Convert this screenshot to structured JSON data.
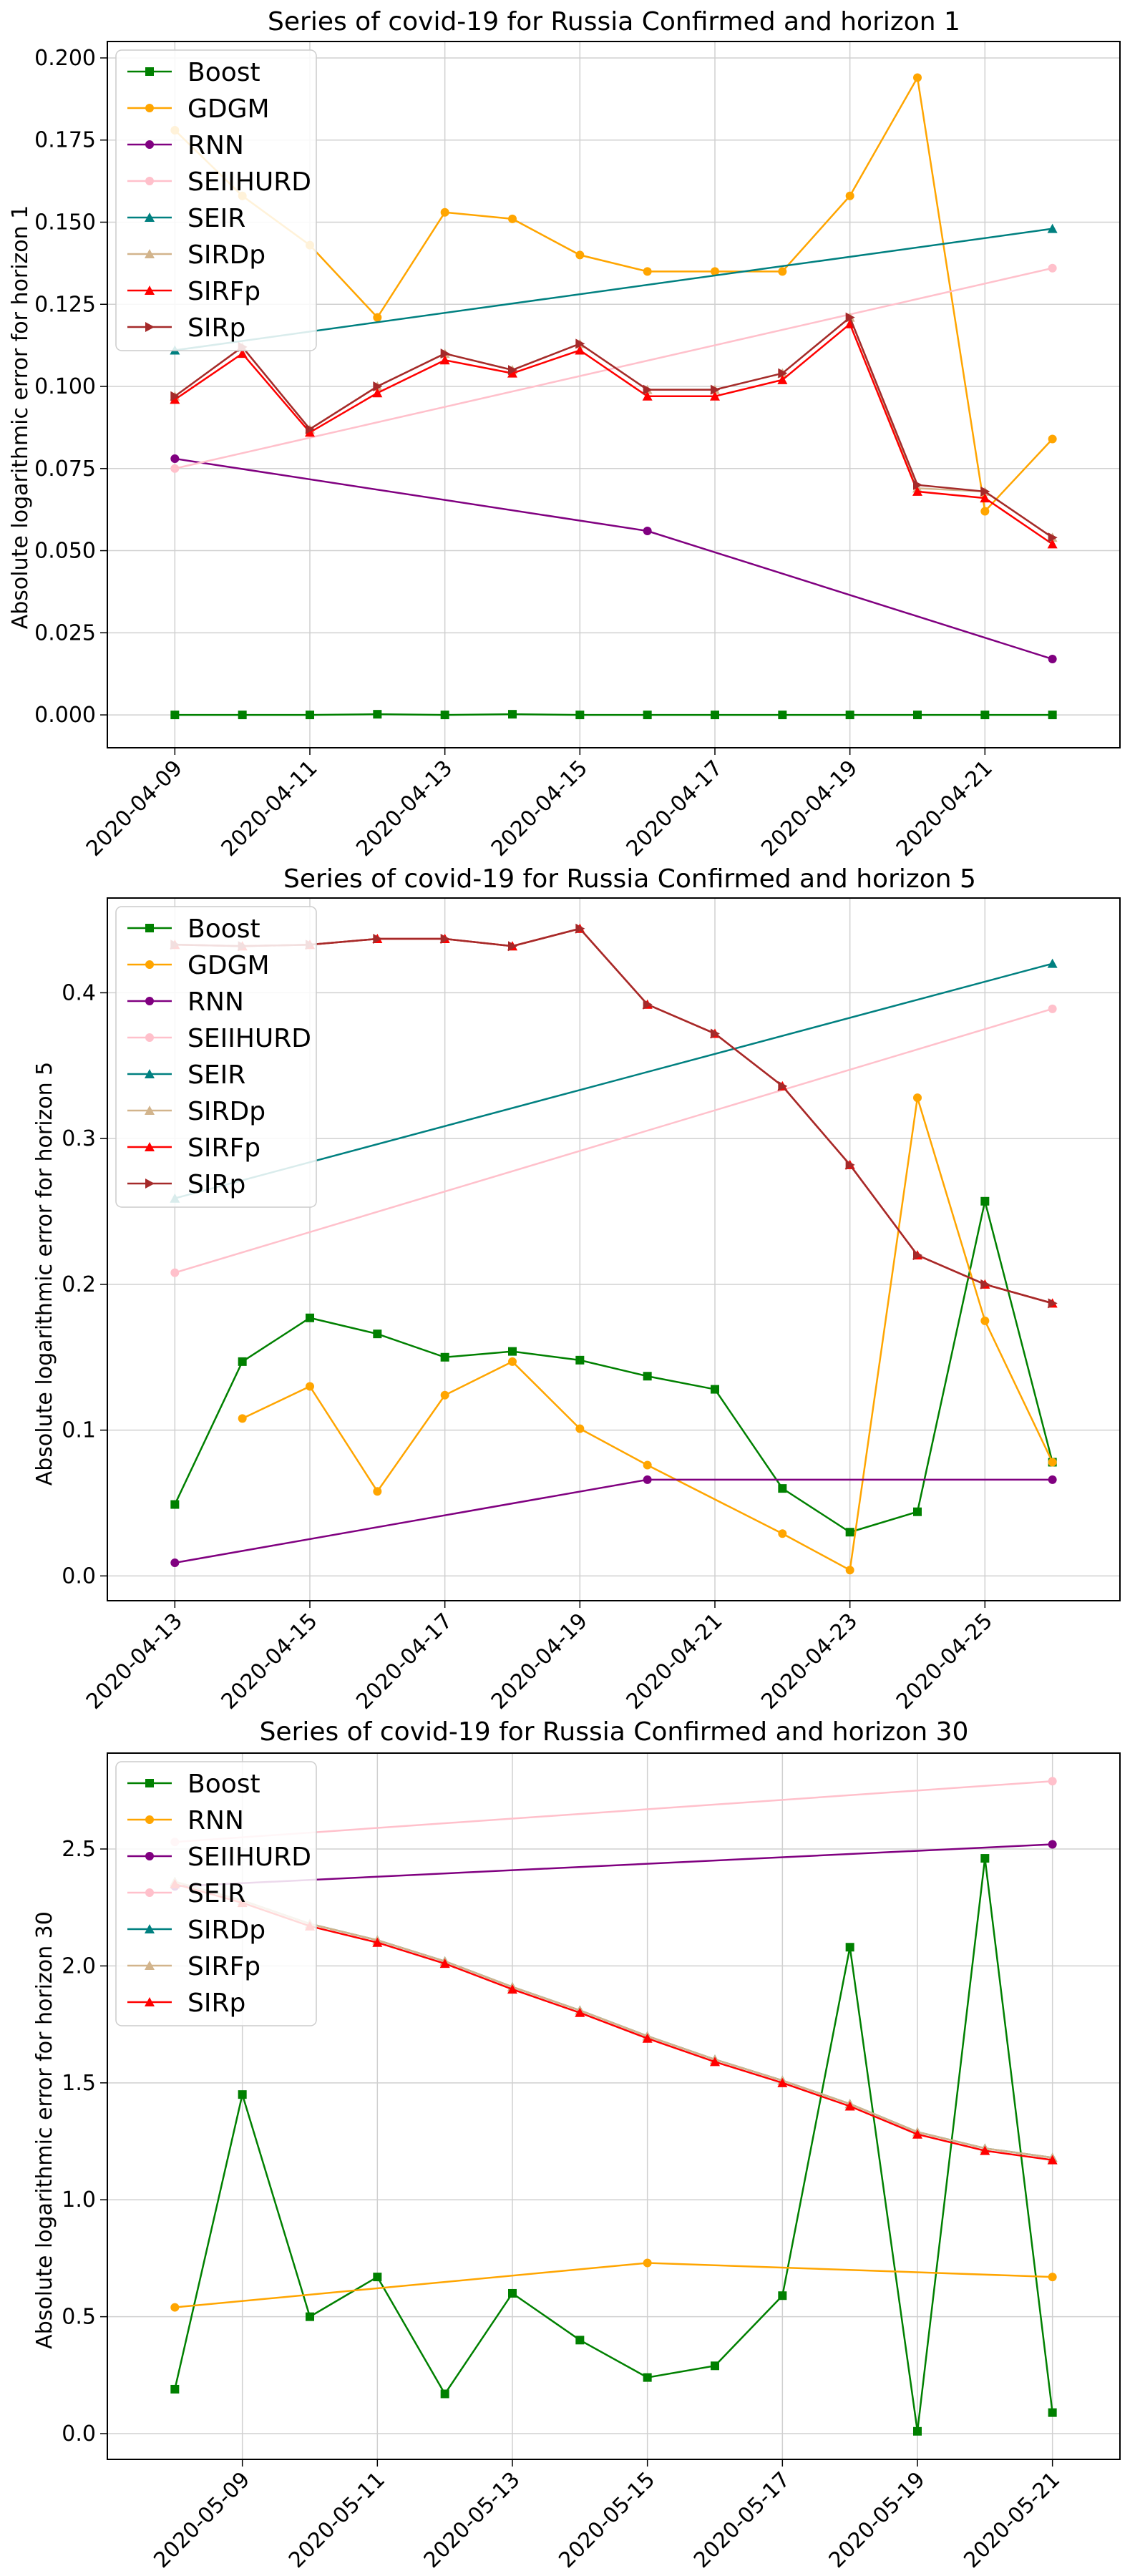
{
  "chart_data": [
    {
      "type": "line",
      "title": "Series of covid-19 for Russia Confirmed and horizon 1",
      "xlabel": "",
      "ylabel": "Absolute logarithmic error for horizon 1",
      "x_start": "2020-04-09",
      "x_range": [
        "2020-04-08",
        "2020-04-23"
      ],
      "x_tick_labels": [
        "2020-04-09",
        "2020-04-11",
        "2020-04-13",
        "2020-04-15",
        "2020-04-17",
        "2020-04-19",
        "2020-04-21"
      ],
      "ylim": [
        -0.01,
        0.205
      ],
      "y_tick_labels": [
        "0.000",
        "0.025",
        "0.050",
        "0.075",
        "0.100",
        "0.125",
        "0.150",
        "0.175",
        "0.200"
      ],
      "grid": true,
      "legend_position": "top-left",
      "series": [
        {
          "name": "Boost",
          "color": "#008000",
          "marker": "square",
          "points": [
            [
              0,
              0.0
            ],
            [
              1,
              0.0
            ],
            [
              2,
              0.0
            ],
            [
              3,
              0.0002
            ],
            [
              4,
              0.0
            ],
            [
              5,
              0.0002
            ],
            [
              6,
              0.0
            ],
            [
              7,
              0.0
            ],
            [
              8,
              0.0
            ],
            [
              9,
              0.0
            ],
            [
              10,
              0.0
            ],
            [
              11,
              0.0
            ],
            [
              12,
              0.0
            ],
            [
              13,
              0.0
            ]
          ]
        },
        {
          "name": "GDGM",
          "color": "#ffa500",
          "marker": "circle",
          "points": [
            [
              0,
              0.178
            ],
            [
              1,
              0.158
            ],
            [
              2,
              0.143
            ],
            [
              3,
              0.121
            ],
            [
              4,
              0.153
            ],
            [
              5,
              0.151
            ],
            [
              6,
              0.14
            ],
            [
              7,
              0.135
            ],
            [
              8,
              0.135
            ],
            [
              9,
              0.135
            ],
            [
              10,
              0.158
            ],
            [
              11,
              0.194
            ],
            [
              12,
              0.062
            ],
            [
              13,
              0.084
            ]
          ]
        },
        {
          "name": "RNN",
          "color": "#800080",
          "marker": "circle",
          "points": [
            [
              0,
              0.078
            ],
            [
              7,
              0.056
            ],
            [
              13,
              0.017
            ]
          ]
        },
        {
          "name": "SEIIHURD",
          "color": "#ffc0cb",
          "marker": "circle",
          "points": [
            [
              0,
              0.075
            ],
            [
              13,
              0.136
            ]
          ]
        },
        {
          "name": "SEIR",
          "color": "#008080",
          "marker": "triangle-up",
          "points": [
            [
              0,
              0.111
            ],
            [
              13,
              0.148
            ]
          ]
        },
        {
          "name": "SIRDp",
          "color": "#d2b48c",
          "marker": "triangle-up",
          "points": [
            [
              0,
              0.097
            ],
            [
              1,
              0.112
            ],
            [
              2,
              0.087
            ],
            [
              3,
              0.1
            ],
            [
              4,
              0.11
            ],
            [
              5,
              0.105
            ],
            [
              6,
              0.113
            ],
            [
              7,
              0.099
            ],
            [
              8,
              0.099
            ],
            [
              9,
              0.104
            ],
            [
              10,
              0.121
            ],
            [
              11,
              0.069
            ],
            [
              12,
              0.068
            ],
            [
              13,
              0.054
            ]
          ]
        },
        {
          "name": "SIRFp",
          "color": "#ff0000",
          "marker": "triangle-up",
          "points": [
            [
              0,
              0.096
            ],
            [
              1,
              0.11
            ],
            [
              2,
              0.086
            ],
            [
              3,
              0.098
            ],
            [
              4,
              0.108
            ],
            [
              5,
              0.104
            ],
            [
              6,
              0.111
            ],
            [
              7,
              0.097
            ],
            [
              8,
              0.097
            ],
            [
              9,
              0.102
            ],
            [
              10,
              0.119
            ],
            [
              11,
              0.068
            ],
            [
              12,
              0.066
            ],
            [
              13,
              0.052
            ]
          ]
        },
        {
          "name": "SIRp",
          "color": "#a52a2a",
          "marker": "triangle-right",
          "points": [
            [
              0,
              0.097
            ],
            [
              1,
              0.112
            ],
            [
              2,
              0.087
            ],
            [
              3,
              0.1
            ],
            [
              4,
              0.11
            ],
            [
              5,
              0.105
            ],
            [
              6,
              0.113
            ],
            [
              7,
              0.099
            ],
            [
              8,
              0.099
            ],
            [
              9,
              0.104
            ],
            [
              10,
              0.121
            ],
            [
              11,
              0.07
            ],
            [
              12,
              0.068
            ],
            [
              13,
              0.054
            ]
          ]
        }
      ]
    },
    {
      "type": "line",
      "title": "Series of covid-19 for Russia Confirmed and horizon 5",
      "xlabel": "",
      "ylabel": "Absolute logarithmic error for horizon 5",
      "x_start": "2020-04-13",
      "x_range": [
        "2020-04-12",
        "2020-04-27"
      ],
      "x_tick_labels": [
        "2020-04-13",
        "2020-04-15",
        "2020-04-17",
        "2020-04-19",
        "2020-04-21",
        "2020-04-23",
        "2020-04-25"
      ],
      "ylim": [
        -0.017,
        0.465
      ],
      "y_tick_labels": [
        "0.0",
        "0.1",
        "0.2",
        "0.3",
        "0.4"
      ],
      "grid": true,
      "legend_position": "top-left",
      "series": [
        {
          "name": "Boost",
          "color": "#008000",
          "marker": "square",
          "points": [
            [
              0,
              0.049
            ],
            [
              1,
              0.147
            ],
            [
              2,
              0.177
            ],
            [
              3,
              0.166
            ],
            [
              4,
              0.15
            ],
            [
              5,
              0.154
            ],
            [
              6,
              0.148
            ],
            [
              7,
              0.137
            ],
            [
              8,
              0.128
            ],
            [
              9,
              0.06
            ],
            [
              10,
              0.03
            ],
            [
              11,
              0.044
            ],
            [
              12,
              0.257
            ],
            [
              13,
              0.078
            ]
          ]
        },
        {
          "name": "GDGM",
          "color": "#ffa500",
          "marker": "circle",
          "points": [
            [
              1,
              0.108
            ],
            [
              2,
              0.13
            ],
            [
              3,
              0.058
            ],
            [
              4,
              0.124
            ],
            [
              5,
              0.147
            ],
            [
              6,
              0.101
            ],
            [
              7,
              0.076
            ],
            [
              9,
              0.029
            ],
            [
              10,
              0.004
            ],
            [
              11,
              0.328
            ],
            [
              12,
              0.175
            ],
            [
              13,
              0.078
            ]
          ]
        },
        {
          "name": "RNN",
          "color": "#800080",
          "marker": "circle",
          "points": [
            [
              0,
              0.009
            ],
            [
              7,
              0.066
            ],
            [
              13,
              0.066
            ]
          ]
        },
        {
          "name": "SEIIHURD",
          "color": "#ffc0cb",
          "marker": "circle",
          "points": [
            [
              0,
              0.208
            ],
            [
              13,
              0.389
            ]
          ]
        },
        {
          "name": "SEIR",
          "color": "#008080",
          "marker": "triangle-up",
          "points": [
            [
              0,
              0.259
            ],
            [
              13,
              0.42
            ]
          ]
        },
        {
          "name": "SIRDp",
          "color": "#d2b48c",
          "marker": "triangle-up",
          "points": [
            [
              0,
              0.433
            ],
            [
              1,
              0.432
            ],
            [
              2,
              0.433
            ],
            [
              3,
              0.437
            ],
            [
              4,
              0.437
            ],
            [
              5,
              0.432
            ],
            [
              6,
              0.444
            ],
            [
              7,
              0.392
            ],
            [
              8,
              0.372
            ],
            [
              9,
              0.336
            ],
            [
              10,
              0.282
            ],
            [
              11,
              0.22
            ],
            [
              12,
              0.2
            ],
            [
              13,
              0.187
            ]
          ]
        },
        {
          "name": "SIRFp",
          "color": "#ff0000",
          "marker": "triangle-up",
          "points": [
            [
              0,
              0.433
            ],
            [
              1,
              0.432
            ],
            [
              2,
              0.433
            ],
            [
              3,
              0.437
            ],
            [
              4,
              0.437
            ],
            [
              5,
              0.432
            ],
            [
              6,
              0.444
            ],
            [
              7,
              0.392
            ],
            [
              8,
              0.372
            ],
            [
              9,
              0.336
            ],
            [
              10,
              0.282
            ],
            [
              11,
              0.22
            ],
            [
              12,
              0.2
            ],
            [
              13,
              0.187
            ]
          ]
        },
        {
          "name": "SIRp",
          "color": "#a52a2a",
          "marker": "triangle-right",
          "points": [
            [
              0,
              0.433
            ],
            [
              1,
              0.432
            ],
            [
              2,
              0.433
            ],
            [
              3,
              0.437
            ],
            [
              4,
              0.437
            ],
            [
              5,
              0.432
            ],
            [
              6,
              0.444
            ],
            [
              7,
              0.392
            ],
            [
              8,
              0.372
            ],
            [
              9,
              0.336
            ],
            [
              10,
              0.282
            ],
            [
              11,
              0.22
            ],
            [
              12,
              0.2
            ],
            [
              13,
              0.187
            ]
          ]
        }
      ]
    },
    {
      "type": "line",
      "title": "Series of covid-19 for Russia Confirmed and horizon 30",
      "xlabel": "",
      "ylabel": "Absolute logarithmic error for horizon 30",
      "x_start": "2020-05-08",
      "x_range": [
        "2020-05-07",
        "2020-05-22"
      ],
      "x_tick_labels": [
        "2020-05-09",
        "2020-05-11",
        "2020-05-13",
        "2020-05-15",
        "2020-05-17",
        "2020-05-19",
        "2020-05-21"
      ],
      "ylim": [
        -0.11,
        2.91
      ],
      "y_tick_labels": [
        "0.0",
        "0.5",
        "1.0",
        "1.5",
        "2.0",
        "2.5"
      ],
      "grid": true,
      "legend_position": "top-left",
      "series": [
        {
          "name": "Boost",
          "color": "#008000",
          "marker": "square",
          "points": [
            [
              0,
              0.19
            ],
            [
              1,
              1.45
            ],
            [
              2,
              0.5
            ],
            [
              3,
              0.67
            ],
            [
              4,
              0.17
            ],
            [
              5,
              0.6
            ],
            [
              6,
              0.4
            ],
            [
              7,
              0.24
            ],
            [
              8,
              0.29
            ],
            [
              9,
              0.59
            ],
            [
              10,
              2.08
            ],
            [
              11,
              0.01
            ],
            [
              12,
              2.46
            ],
            [
              13,
              0.09
            ]
          ]
        },
        {
          "name": "RNN",
          "color": "#ffa500",
          "marker": "circle",
          "points": [
            [
              0,
              0.54
            ],
            [
              7,
              0.73
            ],
            [
              13,
              0.67
            ]
          ]
        },
        {
          "name": "SEIIHURD",
          "color": "#800080",
          "marker": "circle",
          "points": [
            [
              0,
              2.34
            ],
            [
              13,
              2.52
            ]
          ]
        },
        {
          "name": "SEIR",
          "color": "#ffc0cb",
          "marker": "circle",
          "points": [
            [
              0,
              2.53
            ],
            [
              13,
              2.79
            ]
          ]
        },
        {
          "name": "SIRDp",
          "color": "#008080",
          "marker": "triangle-up",
          "points": [
            [
              0,
              2.36
            ],
            [
              1,
              2.28
            ],
            [
              2,
              2.18
            ],
            [
              3,
              2.11
            ],
            [
              4,
              2.02
            ],
            [
              5,
              1.91
            ],
            [
              6,
              1.81
            ],
            [
              7,
              1.7
            ],
            [
              8,
              1.6
            ],
            [
              9,
              1.51
            ],
            [
              10,
              1.41
            ],
            [
              11,
              1.29
            ],
            [
              12,
              1.22
            ],
            [
              13,
              1.18
            ]
          ]
        },
        {
          "name": "SIRFp",
          "color": "#d2b48c",
          "marker": "triangle-up",
          "points": [
            [
              0,
              2.36
            ],
            [
              1,
              2.28
            ],
            [
              2,
              2.18
            ],
            [
              3,
              2.11
            ],
            [
              4,
              2.02
            ],
            [
              5,
              1.91
            ],
            [
              6,
              1.81
            ],
            [
              7,
              1.7
            ],
            [
              8,
              1.6
            ],
            [
              9,
              1.51
            ],
            [
              10,
              1.41
            ],
            [
              11,
              1.29
            ],
            [
              12,
              1.22
            ],
            [
              13,
              1.18
            ]
          ]
        },
        {
          "name": "SIRp",
          "color": "#ff0000",
          "marker": "triangle-up",
          "points": [
            [
              0,
              2.35
            ],
            [
              1,
              2.27
            ],
            [
              2,
              2.17
            ],
            [
              3,
              2.1
            ],
            [
              4,
              2.01
            ],
            [
              5,
              1.9
            ],
            [
              6,
              1.8
            ],
            [
              7,
              1.69
            ],
            [
              8,
              1.59
            ],
            [
              9,
              1.5
            ],
            [
              10,
              1.4
            ],
            [
              11,
              1.28
            ],
            [
              12,
              1.21
            ],
            [
              13,
              1.17
            ]
          ]
        }
      ]
    }
  ]
}
